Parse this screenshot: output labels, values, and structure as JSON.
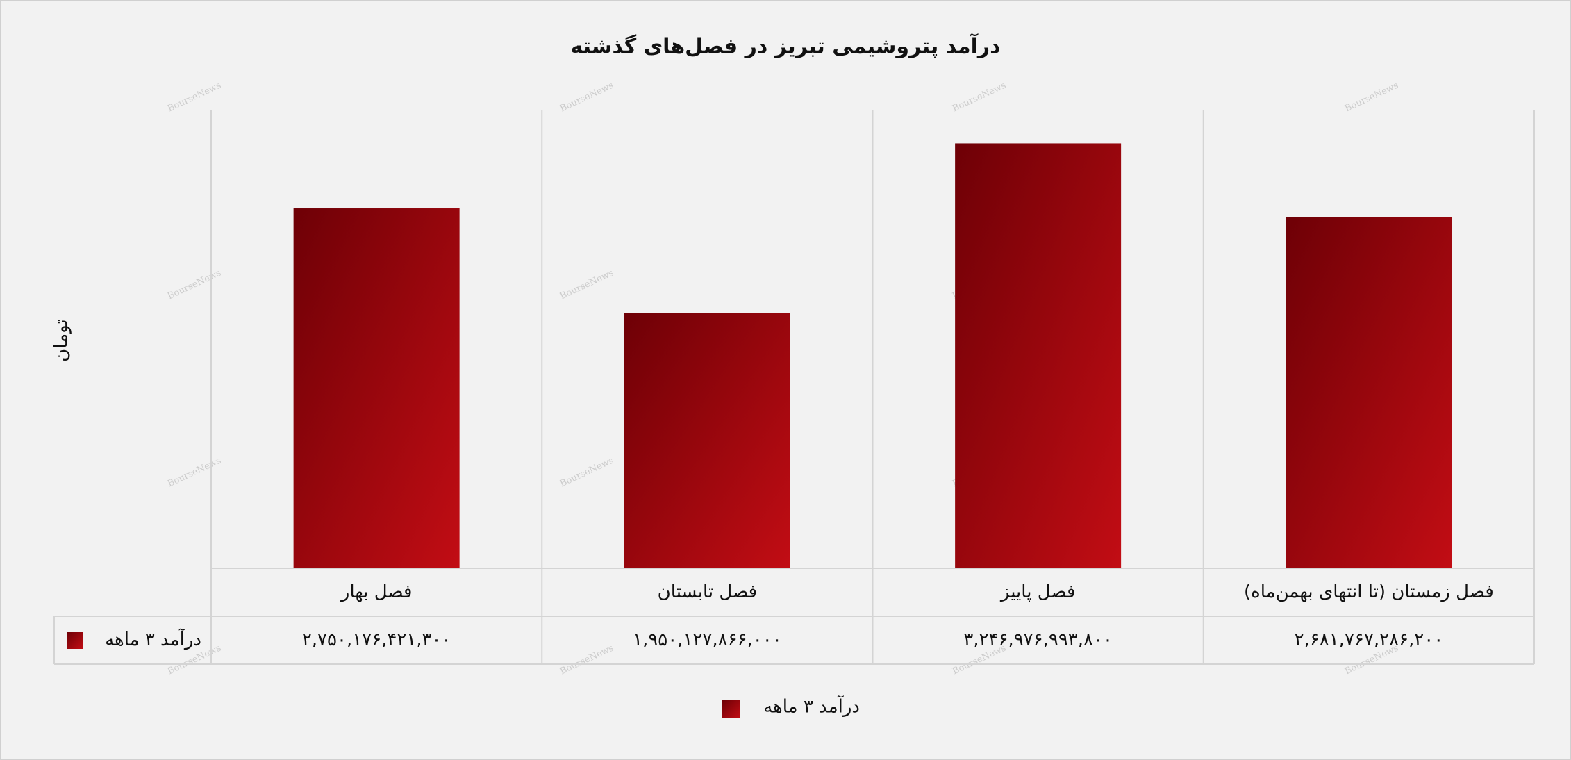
{
  "chart_data": {
    "type": "bar",
    "title": "درآمد پتروشیمی تبریز در فصل‌های گذشته",
    "y_label": "تومان",
    "watermark": "BourseNews",
    "categories": [
      "فصل بهار",
      "فصل تابستان",
      "فصل پاییز",
      "فصل زمستان (تا انتهای بهمن‌ماه)"
    ],
    "series": [
      {
        "name": "درآمد ۳ ماهه",
        "color": "#c20d14",
        "values": [
          2750176421300,
          1950127866000,
          3246976993800,
          2681767286200
        ],
        "value_labels": [
          "۲,۷۵۰,۱۷۶,۴۲۱,۳۰۰",
          "۱,۹۵۰,۱۲۷,۸۶۶,۰۰۰",
          "۳,۲۴۶,۹۷۶,۹۹۳,۸۰۰",
          "۲,۶۸۱,۷۶۷,۲۸۶,۲۰۰"
        ]
      }
    ],
    "legend": "bottom"
  }
}
